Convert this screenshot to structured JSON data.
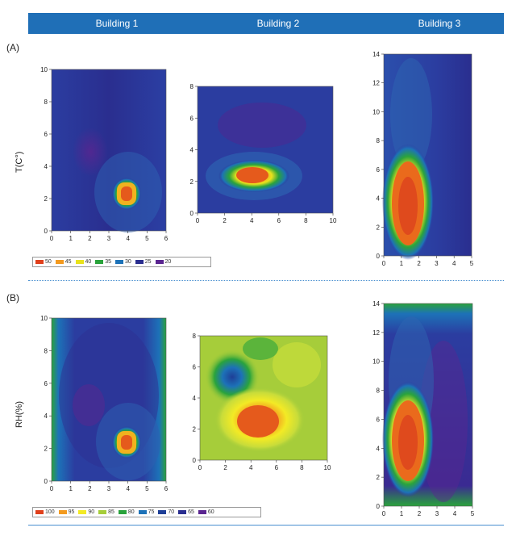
{
  "header": {
    "columns": [
      "Building 1",
      "Building 2",
      "Building 3"
    ],
    "color": "#1f6fb7"
  },
  "panels": {
    "A": {
      "tag": "(A)",
      "ylabel": "T(C°)"
    },
    "B": {
      "tag": "(B)",
      "ylabel": "RH(%)"
    }
  },
  "legend_T": {
    "entries": [
      {
        "label": "50",
        "color": "#e0401c"
      },
      {
        "label": "45",
        "color": "#f39a1f"
      },
      {
        "label": "40",
        "color": "#e9e21c"
      },
      {
        "label": "35",
        "color": "#2aa33c"
      },
      {
        "label": "30",
        "color": "#1d72b8"
      },
      {
        "label": "25",
        "color": "#2a2e8f"
      },
      {
        "label": "20",
        "color": "#5a2590"
      }
    ]
  },
  "legend_RH": {
    "entries": [
      {
        "label": "100",
        "color": "#e0401c"
      },
      {
        "label": "95",
        "color": "#f39a1f"
      },
      {
        "label": "90",
        "color": "#f3ea25"
      },
      {
        "label": "85",
        "color": "#a6cd3a"
      },
      {
        "label": "80",
        "color": "#2aa33c"
      },
      {
        "label": "75",
        "color": "#1d72b8"
      },
      {
        "label": "70",
        "color": "#1e3f97"
      },
      {
        "label": "65",
        "color": "#2a2e8f"
      },
      {
        "label": "60",
        "color": "#5a2590"
      }
    ]
  },
  "plots": {
    "A1": {
      "xticks": [
        "0",
        "1",
        "2",
        "3",
        "4",
        "5",
        "6"
      ],
      "yticks": [
        "0",
        "2",
        "4",
        "6",
        "8",
        "10"
      ]
    },
    "A2": {
      "xticks": [
        "0",
        "2",
        "4",
        "6",
        "8",
        "10"
      ],
      "yticks": [
        "0",
        "2",
        "4",
        "6",
        "8"
      ]
    },
    "A3": {
      "xticks": [
        "0",
        "1",
        "2",
        "3",
        "4",
        "5"
      ],
      "yticks": [
        "0",
        "2",
        "4",
        "6",
        "8",
        "10",
        "12",
        "14"
      ]
    },
    "B1": {
      "xticks": [
        "0",
        "1",
        "2",
        "3",
        "4",
        "5",
        "6"
      ],
      "yticks": [
        "0",
        "2",
        "4",
        "6",
        "8",
        "10"
      ]
    },
    "B2": {
      "xticks": [
        "0",
        "2",
        "4",
        "6",
        "8",
        "10"
      ],
      "yticks": [
        "0",
        "2",
        "4",
        "6",
        "8"
      ]
    },
    "B3": {
      "xticks": [
        "0",
        "1",
        "2",
        "3",
        "4",
        "5"
      ],
      "yticks": [
        "0",
        "2",
        "4",
        "6",
        "8",
        "10",
        "12",
        "14"
      ]
    }
  }
}
